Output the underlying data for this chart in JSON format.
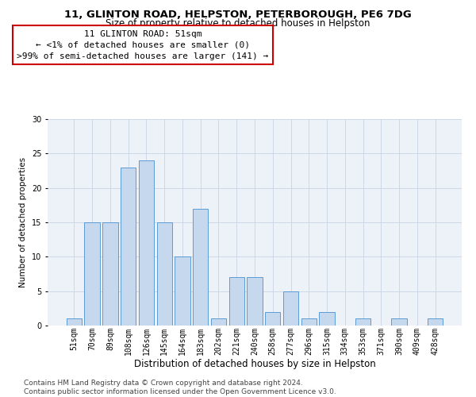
{
  "title1": "11, GLINTON ROAD, HELPSTON, PETERBOROUGH, PE6 7DG",
  "title2": "Size of property relative to detached houses in Helpston",
  "xlabel": "Distribution of detached houses by size in Helpston",
  "ylabel": "Number of detached properties",
  "categories": [
    "51sqm",
    "70sqm",
    "89sqm",
    "108sqm",
    "126sqm",
    "145sqm",
    "164sqm",
    "183sqm",
    "202sqm",
    "221sqm",
    "240sqm",
    "258sqm",
    "277sqm",
    "296sqm",
    "315sqm",
    "334sqm",
    "353sqm",
    "371sqm",
    "390sqm",
    "409sqm",
    "428sqm"
  ],
  "values": [
    1,
    15,
    15,
    23,
    24,
    15,
    10,
    17,
    1,
    7,
    7,
    2,
    5,
    1,
    2,
    0,
    1,
    0,
    1,
    0,
    1
  ],
  "bar_color": "#c5d8ed",
  "bar_edge_color": "#5b9bd5",
  "annotation_lines": [
    "11 GLINTON ROAD: 51sqm",
    "← <1% of detached houses are smaller (0)",
    ">99% of semi-detached houses are larger (141) →"
  ],
  "annotation_box_color": "#ffffff",
  "annotation_box_edge_color": "#cc0000",
  "ylim": [
    0,
    30
  ],
  "yticks": [
    0,
    5,
    10,
    15,
    20,
    25,
    30
  ],
  "footnote": "Contains HM Land Registry data © Crown copyright and database right 2024.\nContains public sector information licensed under the Open Government Licence v3.0.",
  "bg_color": "#ffffff",
  "grid_color": "#c8d4e3",
  "title1_fontsize": 9.5,
  "title2_fontsize": 8.5,
  "xlabel_fontsize": 8.5,
  "ylabel_fontsize": 7.5,
  "tick_fontsize": 7,
  "annot_fontsize": 8,
  "footnote_fontsize": 6.5
}
